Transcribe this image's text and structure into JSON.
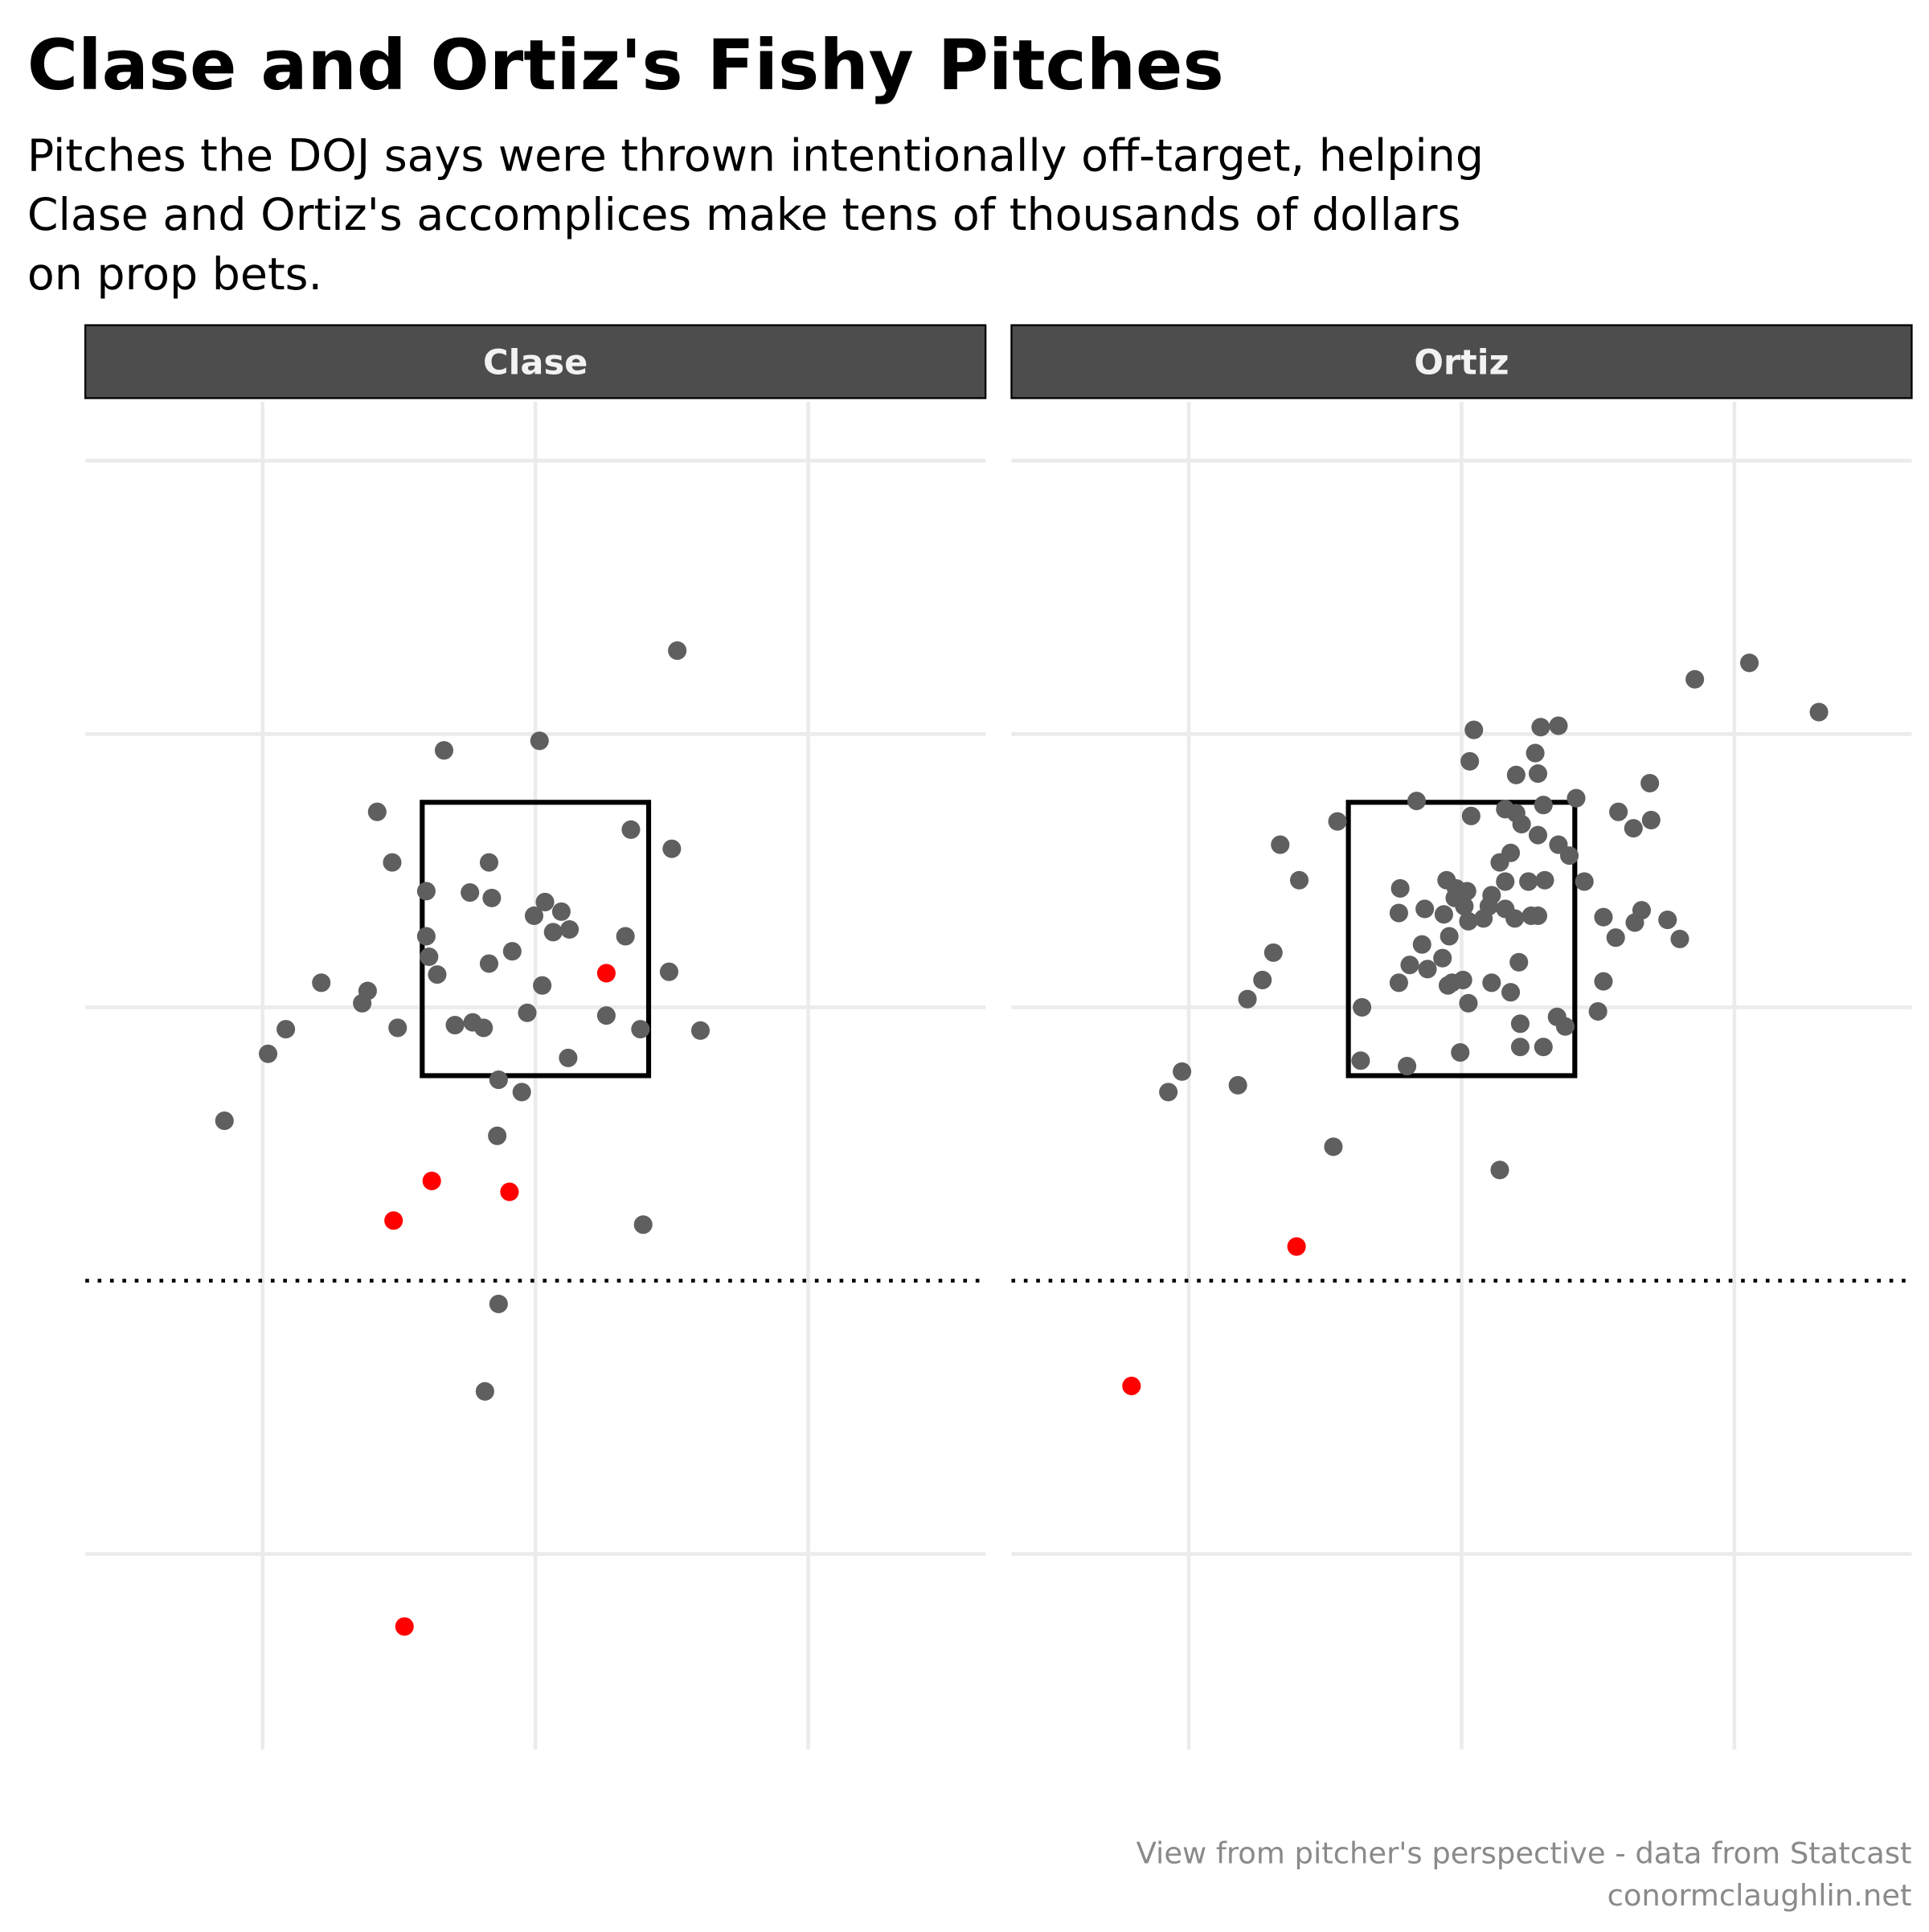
{
  "title": "Clase and Ortiz's Fishy Pitches",
  "subtitle": [
    "Pitches the DOJ says were thrown intentionally off-target, helping",
    "Clase and Ortiz's accomplices make tens of thousands of dollars",
    "on prop bets."
  ],
  "caption": [
    "View from pitcher's perspective - data from Statcast",
    "conormclaughlin.net"
  ],
  "chart_data": [
    {
      "type": "scatter",
      "panel": "Clase",
      "xlim": [
        -3.3,
        3.3
      ],
      "ylim": [
        -3.43,
        6.43
      ],
      "xticks": [
        -2,
        0,
        2
      ],
      "yticks": [
        -2,
        0,
        2,
        4,
        6
      ],
      "grid": true,
      "ref_line": 0,
      "strike_zone": {
        "x": [
          -0.83,
          0.83
        ],
        "y": [
          1.5,
          3.5
        ]
      },
      "series": [
        {
          "color": "#5f5f5f",
          "x": [
            1.04,
            -0.67,
            0.03,
            -1.16,
            0.7,
            1.0,
            -1.05,
            -0.34,
            -0.8,
            -0.48,
            -0.32,
            0.07,
            -0.01,
            0.19,
            0.13,
            0.25,
            0.66,
            -0.8,
            -0.78,
            -0.72,
            -0.17,
            -0.34,
            0.98,
            -1.57,
            -1.23,
            0.05,
            -1.27,
            -0.06,
            0.52,
            -1.01,
            -0.59,
            -0.46,
            -0.38,
            0.77,
            1.21,
            -1.83,
            -1.96,
            0.24,
            -0.27,
            -0.1,
            -2.28,
            -0.28,
            0.79,
            -0.27,
            -0.37
          ],
          "y": [
            4.61,
            3.88,
            3.95,
            3.43,
            3.3,
            3.16,
            3.06,
            3.06,
            2.85,
            2.84,
            2.8,
            2.77,
            2.67,
            2.7,
            2.55,
            2.57,
            2.52,
            2.52,
            2.37,
            2.24,
            2.41,
            2.32,
            2.26,
            2.18,
            2.12,
            2.16,
            2.03,
            1.96,
            1.94,
            1.85,
            1.87,
            1.89,
            1.85,
            1.84,
            1.83,
            1.84,
            1.66,
            1.63,
            1.47,
            1.38,
            1.17,
            1.06,
            0.41,
            -0.17,
            -0.81
          ]
        },
        {
          "color": "#ff0000",
          "x": [
            0.52,
            -0.76,
            -0.19,
            -1.04,
            -0.96
          ],
          "y": [
            2.25,
            0.73,
            0.65,
            0.44,
            -2.53
          ]
        }
      ]
    },
    {
      "type": "scatter",
      "panel": "Ortiz",
      "xlim": [
        -3.3,
        3.3
      ],
      "ylim": [
        -3.43,
        6.43
      ],
      "xticks": [
        -2,
        0,
        2
      ],
      "yticks": [
        -2,
        0,
        2,
        4,
        6
      ],
      "grid": true,
      "ref_line": 0,
      "strike_zone": {
        "x": [
          -0.83,
          0.83
        ],
        "y": [
          1.5,
          3.5
        ]
      },
      "series": [
        {
          "color": "#5f5f5f",
          "x": [
            2.11,
            1.71,
            2.62,
            0.09,
            0.58,
            0.71,
            0.54,
            0.06,
            0.4,
            0.56,
            1.38,
            -0.33,
            0.84,
            -0.91,
            0.07,
            0.32,
            0.4,
            0.6,
            1.15,
            1.39,
            1.26,
            0.44,
            0.56,
            -1.33,
            0.36,
            0.71,
            0.79,
            0.28,
            -1.19,
            -0.11,
            0.32,
            0.49,
            0.61,
            0.9,
            -0.45,
            -0.04,
            0.04,
            0.22,
            -0.05,
            0.02,
            -0.27,
            -0.46,
            -0.13,
            0.2,
            0.32,
            0.05,
            0.16,
            0.39,
            0.51,
            0.56,
            1.04,
            1.32,
            1.27,
            1.51,
            -0.09,
            -0.29,
            1.13,
            1.6,
            -0.14,
            -1.38,
            0.42,
            -0.38,
            -0.25,
            -1.46,
            -0.46,
            -0.07,
            0.01,
            0.22,
            1.04,
            -0.1,
            0.36,
            -1.57,
            0.05,
            -0.73,
            1.0,
            0.43,
            0.7,
            0.76,
            0.6,
            0.43,
            -0.01,
            -0.74,
            -0.4,
            -2.05,
            -2.15,
            -1.64,
            -0.94,
            0.28
          ],
          "y": [
            4.52,
            4.4,
            4.16,
            4.03,
            4.05,
            4.06,
            3.86,
            3.8,
            3.7,
            3.71,
            3.64,
            3.51,
            3.53,
            3.36,
            3.4,
            3.45,
            3.42,
            3.48,
            3.43,
            3.37,
            3.31,
            3.34,
            3.26,
            3.19,
            3.13,
            3.19,
            3.11,
            3.06,
            2.93,
            2.93,
            2.92,
            2.92,
            2.93,
            2.92,
            2.87,
            2.87,
            2.85,
            2.82,
            2.8,
            2.74,
            2.72,
            2.69,
            2.68,
            2.74,
            2.72,
            2.63,
            2.65,
            2.65,
            2.67,
            2.67,
            2.66,
            2.71,
            2.62,
            2.64,
            2.52,
            2.46,
            2.51,
            2.5,
            2.36,
            2.4,
            2.33,
            2.31,
            2.28,
            2.2,
            2.18,
            2.18,
            2.2,
            2.18,
            2.19,
            2.16,
            2.11,
            2.06,
            2.03,
            2.0,
            1.97,
            1.88,
            1.93,
            1.86,
            1.71,
            1.71,
            1.67,
            1.61,
            1.57,
            1.53,
            1.38,
            1.43,
            0.98,
            0.81
          ]
        },
        {
          "color": "#ff0000",
          "x": [
            -1.21,
            -2.42
          ],
          "y": [
            0.25,
            -0.77
          ]
        }
      ]
    }
  ]
}
